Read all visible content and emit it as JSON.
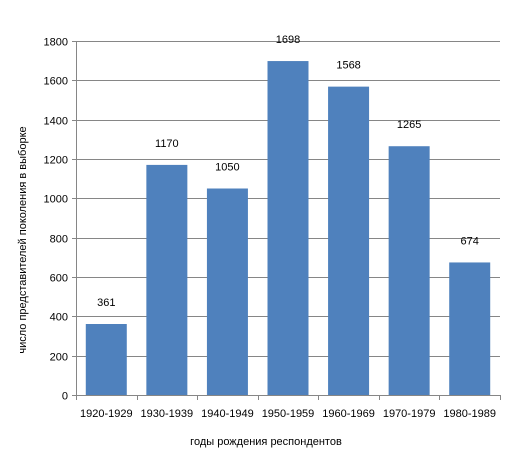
{
  "chart_data": {
    "type": "bar",
    "categories": [
      "1920-1929",
      "1930-1939",
      "1940-1949",
      "1950-1959",
      "1960-1969",
      "1970-1979",
      "1980-1989"
    ],
    "values": [
      361,
      1170,
      1050,
      1698,
      1568,
      1265,
      674
    ],
    "data_labels": [
      "361",
      "1170",
      "1050",
      "1698",
      "1568",
      "1265",
      "674"
    ],
    "y_ticks": [
      0,
      200,
      400,
      600,
      800,
      1000,
      1200,
      1400,
      1600,
      1800
    ],
    "ylim": [
      0,
      1800
    ],
    "xlabel": "годы рождения респондентов",
    "ylabel": "число представителей поколения в выборке",
    "grid": true,
    "legend": "none",
    "bar_color": "#4f81bd",
    "grid_color": "#868686"
  }
}
